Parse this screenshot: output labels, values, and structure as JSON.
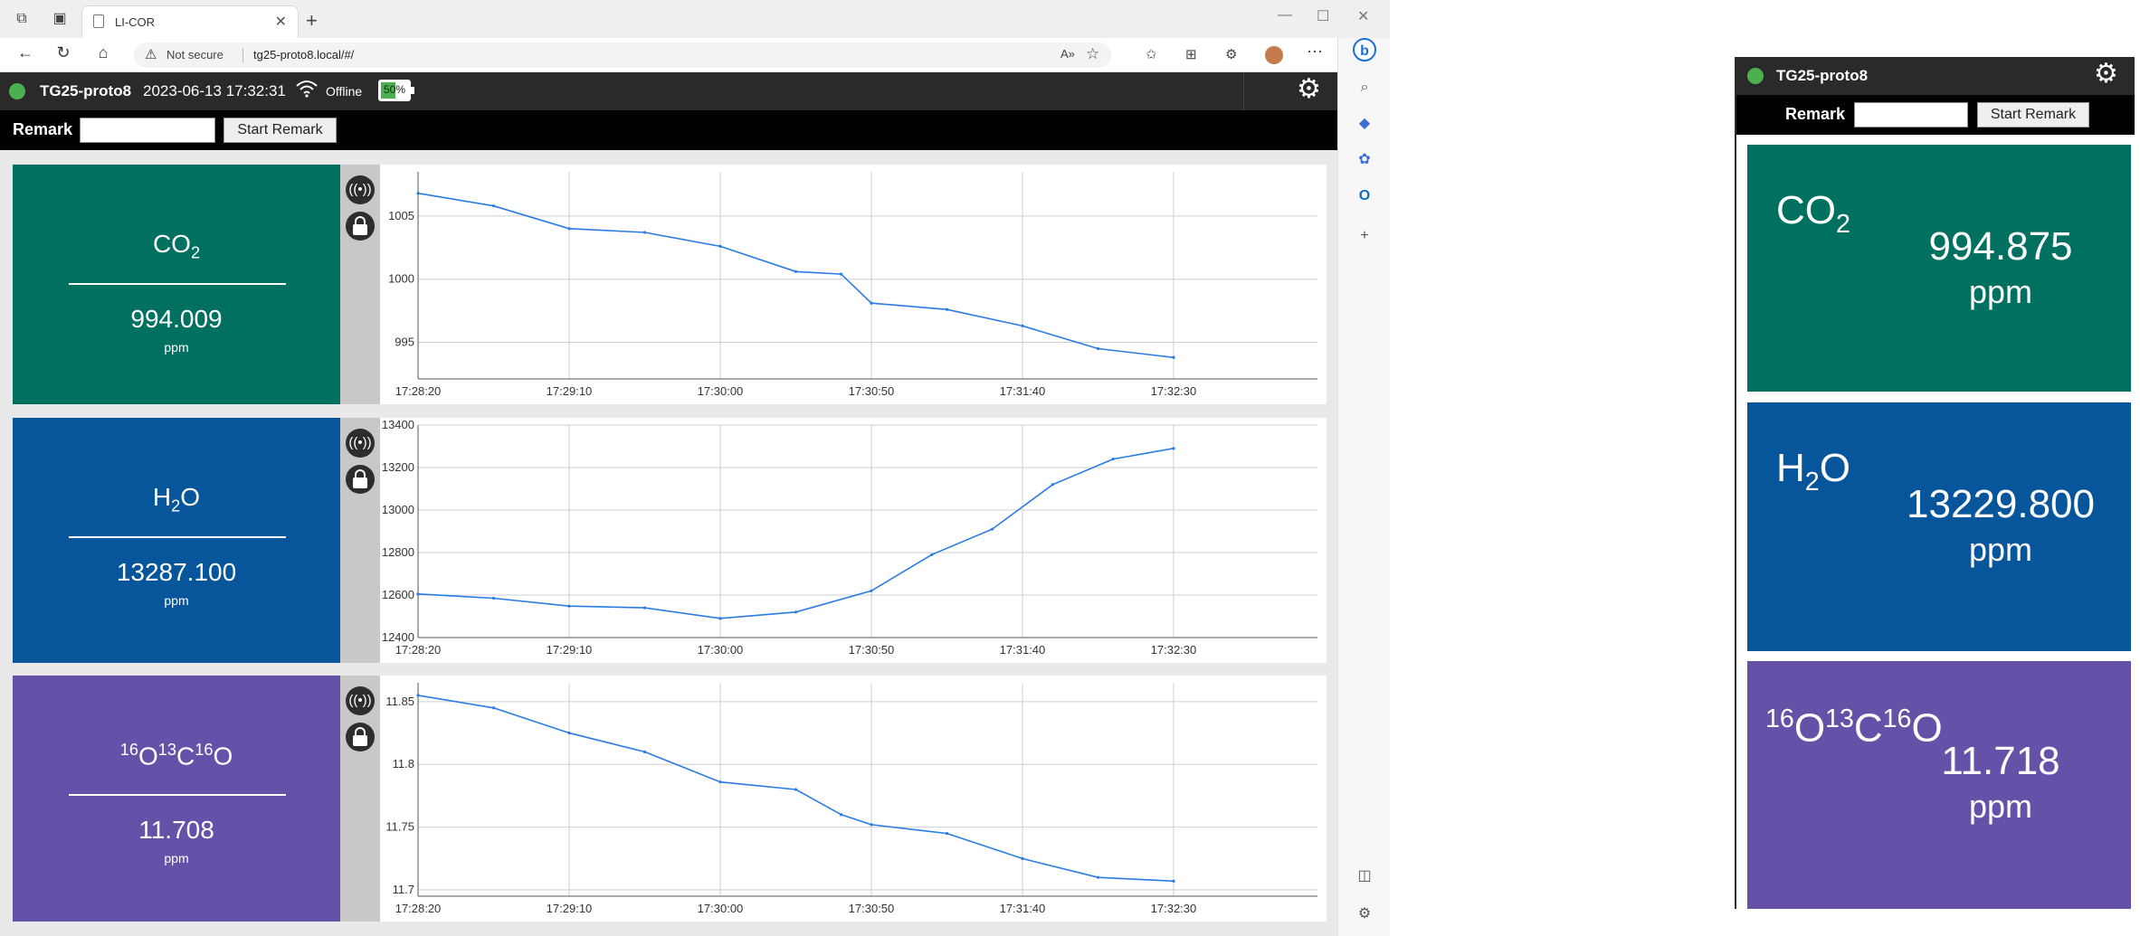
{
  "browser": {
    "tab_title": "LI-COR",
    "security_label": "Not secure",
    "url": "tg25-proto8.local/#/"
  },
  "app": {
    "device_name": "TG25-proto8",
    "datetime": "2023-06-13 17:32:31",
    "connection_status": "Offline",
    "battery_percent": "50%",
    "battery_level": 0.5,
    "status_dot_color": "#4caf50",
    "remark_label": "Remark",
    "remark_input_value": "",
    "start_remark_label": "Start Remark"
  },
  "gases": [
    {
      "id": "co2",
      "name_html": "CO<sub>2</sub>",
      "value": "994.009",
      "unit": "ppm",
      "color": "#007060"
    },
    {
      "id": "h2o",
      "name_html": "H<sub>2</sub>O",
      "value": "13287.100",
      "unit": "ppm",
      "color": "#07559a"
    },
    {
      "id": "isotope",
      "name_html": "<sup>16</sup>O<sup>13</sup>C<sup>16</sup>O",
      "value": "11.708",
      "unit": "ppm",
      "color": "#6651a8"
    }
  ],
  "chart_data": [
    {
      "type": "line",
      "series_color": "#2a7be4",
      "x_ticks": [
        "17:28:20",
        "17:29:10",
        "17:30:00",
        "17:30:50",
        "17:31:40",
        "17:32:30"
      ],
      "y_ticks": [
        "1005",
        "1000",
        "995"
      ],
      "ylim": [
        992.1,
        1008.5
      ],
      "x": [
        "17:28:20",
        "17:28:45",
        "17:29:10",
        "17:29:35",
        "17:30:00",
        "17:30:25",
        "17:30:40",
        "17:30:50",
        "17:31:15",
        "17:31:40",
        "17:32:05",
        "17:32:30"
      ],
      "y": [
        1006.8,
        1005.8,
        1004.0,
        1003.7,
        1002.6,
        1000.6,
        1000.4,
        998.1,
        997.6,
        996.3,
        994.5,
        993.8
      ]
    },
    {
      "type": "line",
      "series_color": "#2a7be4",
      "x_ticks": [
        "17:28:20",
        "17:29:10",
        "17:30:00",
        "17:30:50",
        "17:31:40",
        "17:32:30"
      ],
      "y_ticks": [
        "13400",
        "13200",
        "13000",
        "12800",
        "12600",
        "12400"
      ],
      "ylim": [
        12400,
        13400
      ],
      "x": [
        "17:28:20",
        "17:28:45",
        "17:29:10",
        "17:29:35",
        "17:30:00",
        "17:30:25",
        "17:30:50",
        "17:31:10",
        "17:31:30",
        "17:31:50",
        "17:32:10",
        "17:32:30"
      ],
      "y": [
        12605,
        12585,
        12548,
        12540,
        12490,
        12520,
        12620,
        12790,
        12910,
        13120,
        13240,
        13290
      ]
    },
    {
      "type": "line",
      "series_color": "#2a7be4",
      "x_ticks": [
        "17:28:20",
        "17:29:10",
        "17:30:00",
        "17:30:50",
        "17:31:40",
        "17:32:30"
      ],
      "y_ticks": [
        "11.85",
        "11.8",
        "11.75",
        "11.7"
      ],
      "ylim": [
        11.695,
        11.865
      ],
      "x": [
        "17:28:20",
        "17:28:45",
        "17:29:10",
        "17:29:35",
        "17:30:00",
        "17:30:25",
        "17:30:40",
        "17:30:50",
        "17:31:15",
        "17:31:40",
        "17:32:05",
        "17:32:30"
      ],
      "y": [
        11.855,
        11.845,
        11.825,
        11.81,
        11.786,
        11.78,
        11.76,
        11.752,
        11.745,
        11.725,
        11.71,
        11.707
      ]
    }
  ],
  "detached_panel": {
    "device_name": "TG25-proto8",
    "remark_label": "Remark",
    "start_remark_label": "Start Remark",
    "readings": [
      {
        "id": "co2",
        "name_html": "CO<sub>2</sub>",
        "value": "994.875",
        "unit": "ppm",
        "color": "#007060"
      },
      {
        "id": "h2o",
        "name_html": "H<sub>2</sub>O",
        "value": "13229.800",
        "unit": "ppm",
        "color": "#07559a"
      },
      {
        "id": "isotope",
        "name_html": "<sup>16</sup>O<sup>13</sup>C<sup>16</sup>O",
        "value": "11.718",
        "unit": "ppm",
        "color": "#6651a8"
      }
    ]
  }
}
